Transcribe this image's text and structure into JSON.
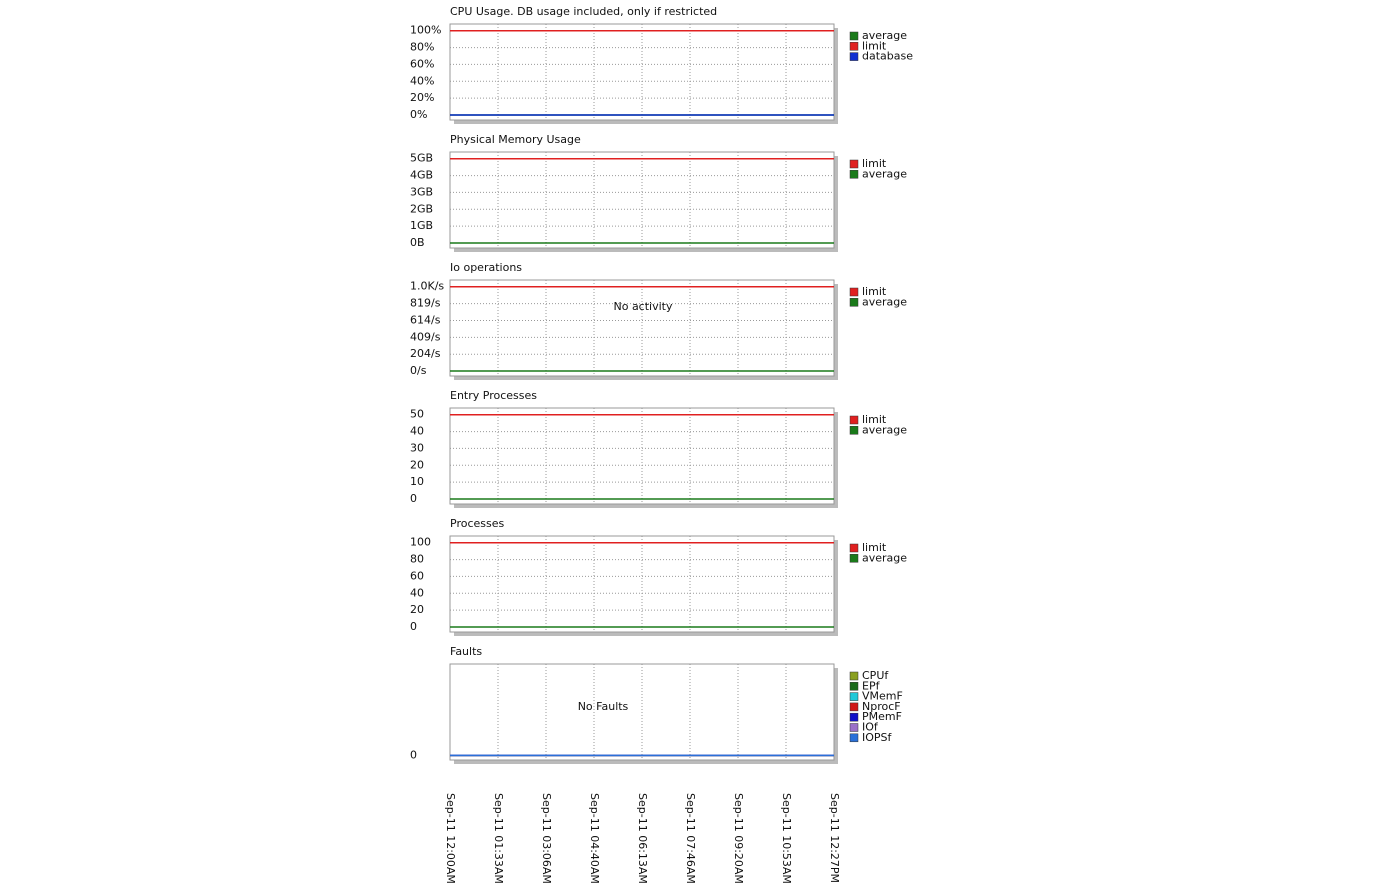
{
  "time_axis": {
    "categories": [
      "Sep-11 12:00AM",
      "Sep-11 01:33AM",
      "Sep-11 03:06AM",
      "Sep-11 04:40AM",
      "Sep-11 06:13AM",
      "Sep-11 07:46AM",
      "Sep-11 09:20AM",
      "Sep-11 10:53AM",
      "Sep-11 12:27PM"
    ]
  },
  "chart_data": [
    {
      "type": "line",
      "title": "CPU Usage. DB usage included, only if restricted",
      "ylim": [
        -6,
        108
      ],
      "yticks": [
        {
          "value": 0,
          "label": "0%"
        },
        {
          "value": 20,
          "label": "20%"
        },
        {
          "value": 40,
          "label": "40%"
        },
        {
          "value": 60,
          "label": "60%"
        },
        {
          "value": 80,
          "label": "80%"
        },
        {
          "value": 100,
          "label": "100%"
        }
      ],
      "grid": true,
      "series": [
        {
          "name": "average",
          "color": "#1a7a1a",
          "values": [
            0,
            0,
            0,
            0,
            0,
            0,
            0,
            0,
            0
          ]
        },
        {
          "name": "limit",
          "color": "#e02020",
          "values": [
            100,
            100,
            100,
            100,
            100,
            100,
            100,
            100,
            100
          ]
        },
        {
          "name": "database",
          "color": "#1030d0",
          "values": [
            0,
            0,
            0,
            0,
            0,
            0,
            0,
            0,
            0
          ]
        }
      ]
    },
    {
      "type": "line",
      "title": "Physical Memory Usage",
      "ylim": [
        -0.3,
        5.4
      ],
      "yticks": [
        {
          "value": 0,
          "label": "0B"
        },
        {
          "value": 1,
          "label": "1GB"
        },
        {
          "value": 2,
          "label": "2GB"
        },
        {
          "value": 3,
          "label": "3GB"
        },
        {
          "value": 4,
          "label": "4GB"
        },
        {
          "value": 5,
          "label": "5GB"
        }
      ],
      "grid": true,
      "series": [
        {
          "name": "limit",
          "color": "#e02020",
          "values": [
            5,
            5,
            5,
            5,
            5,
            5,
            5,
            5,
            5
          ]
        },
        {
          "name": "average",
          "color": "#1a7a1a",
          "values": [
            0,
            0,
            0,
            0,
            0,
            0,
            0,
            0,
            0
          ]
        }
      ]
    },
    {
      "type": "line",
      "title": "Io operations",
      "ylim": [
        -61,
        1106
      ],
      "annotation": "No activity",
      "yticks": [
        {
          "value": 0,
          "label": "0/s"
        },
        {
          "value": 204,
          "label": "204/s"
        },
        {
          "value": 409,
          "label": "409/s"
        },
        {
          "value": 614,
          "label": "614/s"
        },
        {
          "value": 819,
          "label": "819/s"
        },
        {
          "value": 1024,
          "label": "1.0K/s"
        }
      ],
      "grid": true,
      "series": [
        {
          "name": "limit",
          "color": "#e02020",
          "values": [
            1024,
            1024,
            1024,
            1024,
            1024,
            1024,
            1024,
            1024,
            1024
          ]
        },
        {
          "name": "average",
          "color": "#1a7a1a",
          "values": [
            0,
            0,
            0,
            0,
            0,
            0,
            0,
            0,
            0
          ]
        }
      ]
    },
    {
      "type": "line",
      "title": "Entry Processes",
      "ylim": [
        -3,
        54
      ],
      "yticks": [
        0,
        10,
        20,
        30,
        40,
        50
      ],
      "grid": true,
      "series": [
        {
          "name": "limit",
          "color": "#e02020",
          "values": [
            50,
            50,
            50,
            50,
            50,
            50,
            50,
            50,
            50
          ]
        },
        {
          "name": "average",
          "color": "#1a7a1a",
          "values": [
            0,
            0,
            0,
            0,
            0,
            0,
            0,
            0,
            0
          ]
        }
      ]
    },
    {
      "type": "line",
      "title": "Processes",
      "ylim": [
        -6,
        108
      ],
      "yticks": [
        0,
        20,
        40,
        60,
        80,
        100
      ],
      "grid": true,
      "series": [
        {
          "name": "limit",
          "color": "#e02020",
          "values": [
            100,
            100,
            100,
            100,
            100,
            100,
            100,
            100,
            100
          ]
        },
        {
          "name": "average",
          "color": "#1a7a1a",
          "values": [
            0,
            0,
            0,
            0,
            0,
            0,
            0,
            0,
            0
          ]
        }
      ]
    },
    {
      "type": "line",
      "title": "Faults",
      "ylim": [
        -0.05,
        1
      ],
      "annotation": "No Faults",
      "yticks": [
        0
      ],
      "grid": true,
      "series": [
        {
          "name": "CPUf",
          "color": "#8aa020",
          "values": [
            0,
            0,
            0,
            0,
            0,
            0,
            0,
            0,
            0
          ]
        },
        {
          "name": "EPf",
          "color": "#1a6a1a",
          "values": [
            0,
            0,
            0,
            0,
            0,
            0,
            0,
            0,
            0
          ]
        },
        {
          "name": "VMemF",
          "color": "#20c8d8",
          "values": [
            0,
            0,
            0,
            0,
            0,
            0,
            0,
            0,
            0
          ]
        },
        {
          "name": "NprocF",
          "color": "#d01818",
          "values": [
            0,
            0,
            0,
            0,
            0,
            0,
            0,
            0,
            0
          ]
        },
        {
          "name": "PMemF",
          "color": "#1010c8",
          "values": [
            0,
            0,
            0,
            0,
            0,
            0,
            0,
            0,
            0
          ]
        },
        {
          "name": "IOf",
          "color": "#9a70c8",
          "values": [
            0,
            0,
            0,
            0,
            0,
            0,
            0,
            0,
            0
          ]
        },
        {
          "name": "IOPSf",
          "color": "#2a70d8",
          "values": [
            0,
            0,
            0,
            0,
            0,
            0,
            0,
            0,
            0
          ]
        }
      ]
    }
  ]
}
